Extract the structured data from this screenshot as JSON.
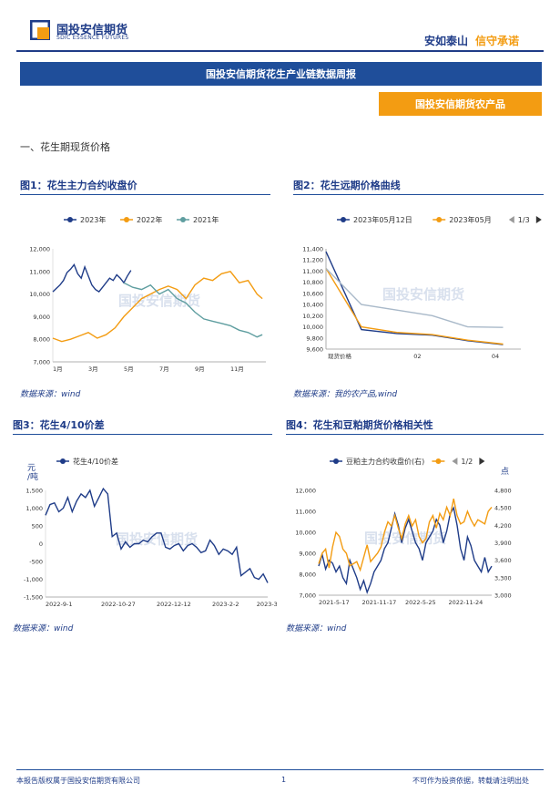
{
  "header": {
    "logo_cn": "国投安信期货",
    "logo_en": "SDIC ESSENCE FUTURES",
    "slogan_part1": "安如泰山",
    "slogan_part2": "信守承诺",
    "report_title": "国投安信期货花生产业链数据周报",
    "category_tag": "国投安信期货农产品"
  },
  "section_heading": "一、花生期现货价格",
  "watermark": "国投安信期货",
  "colors": {
    "navy": "#1f3c88",
    "blue_bar": "#1f4e9a",
    "orange": "#f39c12",
    "teal": "#5f9ea0",
    "series_dark": "#1f3c88"
  },
  "figures": [
    {
      "title": "图1：花生主力合约收盘价",
      "source": "数据来源：wind"
    },
    {
      "title": "图2：花生远期价格曲线",
      "source": "数据来源：我的农产品,wind"
    },
    {
      "title": "图3：花生4/10价差",
      "source": "数据来源：wind"
    },
    {
      "title": "图4：花生和豆粕期货价格相关性",
      "source": "数据来源：wind"
    }
  ],
  "chart_data": [
    {
      "type": "line",
      "legend_placement": "top",
      "series": [
        {
          "name": "2023年",
          "color": "#1f3c88",
          "x": [
            0,
            0.2,
            0.4,
            0.6,
            0.8,
            1.0,
            1.2,
            1.4,
            1.6,
            1.8,
            2.0,
            2.2,
            2.4,
            2.6,
            2.8,
            3.0,
            3.2,
            3.4,
            3.6,
            3.8,
            4.0,
            4.2,
            4.4
          ],
          "values": [
            10100,
            10250,
            10400,
            10600,
            10950,
            11100,
            11300,
            10900,
            10700,
            11200,
            10800,
            10400,
            10200,
            10100,
            10300,
            10500,
            10700,
            10600,
            10850,
            10700,
            10500,
            10800,
            11050
          ]
        },
        {
          "name": "2022年",
          "color": "#f39c12",
          "x": [
            0,
            0.5,
            1.0,
            1.5,
            2.0,
            2.5,
            3.0,
            3.5,
            4.0,
            4.5,
            5.0,
            5.5,
            6.0,
            6.5,
            7.0,
            7.5,
            8.0,
            8.5,
            9.0,
            9.5,
            10.0,
            10.5,
            11.0,
            11.5,
            11.8
          ],
          "values": [
            8050,
            7900,
            8000,
            8150,
            8300,
            8050,
            8200,
            8500,
            9000,
            9400,
            9800,
            10000,
            10200,
            10350,
            10200,
            9800,
            10400,
            10700,
            10600,
            10900,
            11000,
            10500,
            10600,
            10000,
            9800
          ]
        },
        {
          "name": "2021年",
          "color": "#5f9ea0",
          "x": [
            4.0,
            4.5,
            5.0,
            5.5,
            6.0,
            6.5,
            7.0,
            7.5,
            8.0,
            8.5,
            9.0,
            9.5,
            10.0,
            10.5,
            11.0,
            11.5,
            11.8
          ],
          "values": [
            10500,
            10300,
            10200,
            10400,
            10000,
            10200,
            9800,
            9600,
            9200,
            8900,
            8800,
            8700,
            8600,
            8400,
            8300,
            8100,
            8200
          ]
        }
      ],
      "x_tick_labels": [
        "1月",
        "3月",
        "5月",
        "7月",
        "9月",
        "11月"
      ],
      "x_ticks": [
        0,
        2,
        4,
        6,
        8,
        10
      ],
      "y_tick_labels": [
        "7,000",
        "8,000",
        "9,000",
        "10,000",
        "11,000",
        "12,000"
      ],
      "ylim": [
        7000,
        12000
      ],
      "xlim": [
        0,
        12
      ]
    },
    {
      "type": "line",
      "legend_placement": "top",
      "legend_page": "1/3",
      "x_tick_labels": [
        "现货价格",
        "02",
        "04"
      ],
      "y_tick_labels": [
        "9,600",
        "9,800",
        "10,000",
        "10,200",
        "10,400",
        "10,600",
        "10,800",
        "11,000",
        "11,200",
        "11,400"
      ],
      "ylim": [
        9600,
        11400
      ],
      "series": [
        {
          "name": "2023年05月12日",
          "color": "#1f3c88",
          "x": [
            0,
            1,
            2,
            3,
            4,
            5
          ],
          "values": [
            11350,
            9950,
            9880,
            9850,
            9750,
            9680
          ]
        },
        {
          "name": "2023年05月",
          "color": "#f39c12",
          "x": [
            0,
            1,
            2,
            3,
            4,
            5
          ],
          "values": [
            11050,
            10000,
            9900,
            9860,
            9760,
            9690
          ]
        },
        {
          "name": "",
          "color": "#a9b9c9",
          "x": [
            0,
            1,
            2,
            3,
            4,
            5
          ],
          "values": [
            11050,
            10400,
            10300,
            10200,
            10000,
            9990
          ]
        }
      ],
      "xlim": [
        0,
        5.5
      ]
    },
    {
      "type": "line",
      "legend_placement": "top",
      "y_unit": "元/吨",
      "series": [
        {
          "name": "花生4/10价差",
          "color": "#1f3c88",
          "x": [
            0,
            2,
            4,
            6,
            8,
            10,
            12,
            14,
            16,
            18,
            20,
            22,
            24,
            26,
            28,
            30,
            32,
            34,
            36,
            38,
            40,
            42,
            44,
            46,
            48,
            50,
            52,
            54,
            56,
            58,
            60,
            62,
            64,
            66,
            68,
            70,
            72,
            74,
            76,
            78,
            80,
            82,
            84,
            86,
            88,
            90,
            92,
            94,
            96,
            98,
            100
          ],
          "values": [
            800,
            1100,
            1150,
            900,
            1000,
            1300,
            900,
            1200,
            1400,
            1300,
            1500,
            1050,
            1300,
            1550,
            1400,
            200,
            300,
            -150,
            50,
            -100,
            0,
            0,
            100,
            50,
            200,
            300,
            300,
            -100,
            -150,
            -50,
            0,
            -200,
            -50,
            0,
            -100,
            -250,
            -200,
            100,
            -50,
            -300,
            -150,
            -200,
            -300,
            -100,
            -900,
            -800,
            -700,
            -950,
            -1000,
            -850,
            -1100
          ]
        }
      ],
      "x_tick_labels": [
        "2022-9-1",
        "2022-10-27",
        "2022-12-12",
        "2023-2-2",
        "2023-3-20"
      ],
      "x_ticks": [
        0,
        25,
        50,
        75,
        95
      ],
      "y_tick_labels": [
        "-1,500",
        "-1,000",
        "-500",
        "0",
        "500",
        "1,000",
        "1,500"
      ],
      "ylim": [
        -1500,
        1500
      ],
      "xlim": [
        0,
        100
      ]
    },
    {
      "type": "line",
      "legend_placement": "top",
      "legend_page": "1/2",
      "y2_unit": "点",
      "series": [
        {
          "name": "豆粕主力合约收盘价(右)",
          "color": "#1f3c88",
          "axis": "right",
          "x": [
            0,
            2,
            4,
            6,
            8,
            10,
            12,
            14,
            16,
            18,
            20,
            22,
            24,
            26,
            28,
            30,
            32,
            34,
            36,
            38,
            40,
            42,
            44,
            46,
            48,
            50,
            52,
            54,
            56,
            58,
            60,
            62,
            64,
            66,
            68,
            70,
            72,
            74,
            76,
            78,
            80,
            82,
            84,
            86,
            88,
            90,
            92,
            94,
            96,
            98,
            100
          ],
          "values": [
            3500,
            3700,
            3450,
            3600,
            3550,
            3400,
            3500,
            3300,
            3200,
            3600,
            3450,
            3300,
            3100,
            3250,
            3050,
            3200,
            3400,
            3500,
            3600,
            3800,
            3900,
            4150,
            4400,
            4200,
            3900,
            4150,
            4300,
            4100,
            3900,
            3800,
            3600,
            3900,
            4000,
            4100,
            4300,
            4200,
            3900,
            4100,
            4400,
            4500,
            4200,
            3800,
            3600,
            4000,
            3850,
            3600,
            3500,
            3400,
            3650,
            3400,
            3500
          ]
        },
        {
          "name": "",
          "color": "#f39c12",
          "axis": "left",
          "x": [
            0,
            2,
            4,
            6,
            8,
            10,
            12,
            14,
            16,
            18,
            20,
            22,
            24,
            26,
            28,
            30,
            32,
            34,
            36,
            38,
            40,
            42,
            44,
            46,
            48,
            50,
            52,
            54,
            56,
            58,
            60,
            62,
            64,
            66,
            68,
            70,
            72,
            74,
            76,
            78,
            80,
            82,
            84,
            86,
            88,
            90,
            92,
            94,
            96,
            98,
            100
          ],
          "values": [
            8500,
            9000,
            9200,
            8300,
            9300,
            10000,
            9800,
            9200,
            9000,
            8400,
            8500,
            8600,
            8200,
            8800,
            9400,
            8600,
            8800,
            9000,
            9300,
            10000,
            10500,
            10300,
            10800,
            10200,
            9700,
            10400,
            10800,
            10300,
            10600,
            9800,
            9500,
            9700,
            10500,
            10800,
            10200,
            10900,
            10600,
            11200,
            10800,
            11600,
            10800,
            10400,
            10500,
            11000,
            10600,
            10300,
            10600,
            10500,
            10400,
            11000,
            11200
          ]
        }
      ],
      "x_tick_labels": [
        "2021-5-17",
        "2021-11-17",
        "2022-5-25",
        "2022-11-24"
      ],
      "x_ticks": [
        0,
        25,
        50,
        75
      ],
      "y_tick_labels": [
        "7,000",
        "8,000",
        "9,000",
        "10,000",
        "11,000",
        "12,000"
      ],
      "y2_tick_labels": [
        "3,000",
        "3,300",
        "3,600",
        "3,900",
        "4,200",
        "4,500",
        "4,800"
      ],
      "ylim": [
        7000,
        12000
      ],
      "y2lim": [
        3000,
        4800
      ],
      "xlim": [
        0,
        100
      ]
    }
  ],
  "footer": {
    "left": "本报告版权属于国投安信期货有限公司",
    "page": "1",
    "right": "不可作为投资依据，转载请注明出处"
  }
}
